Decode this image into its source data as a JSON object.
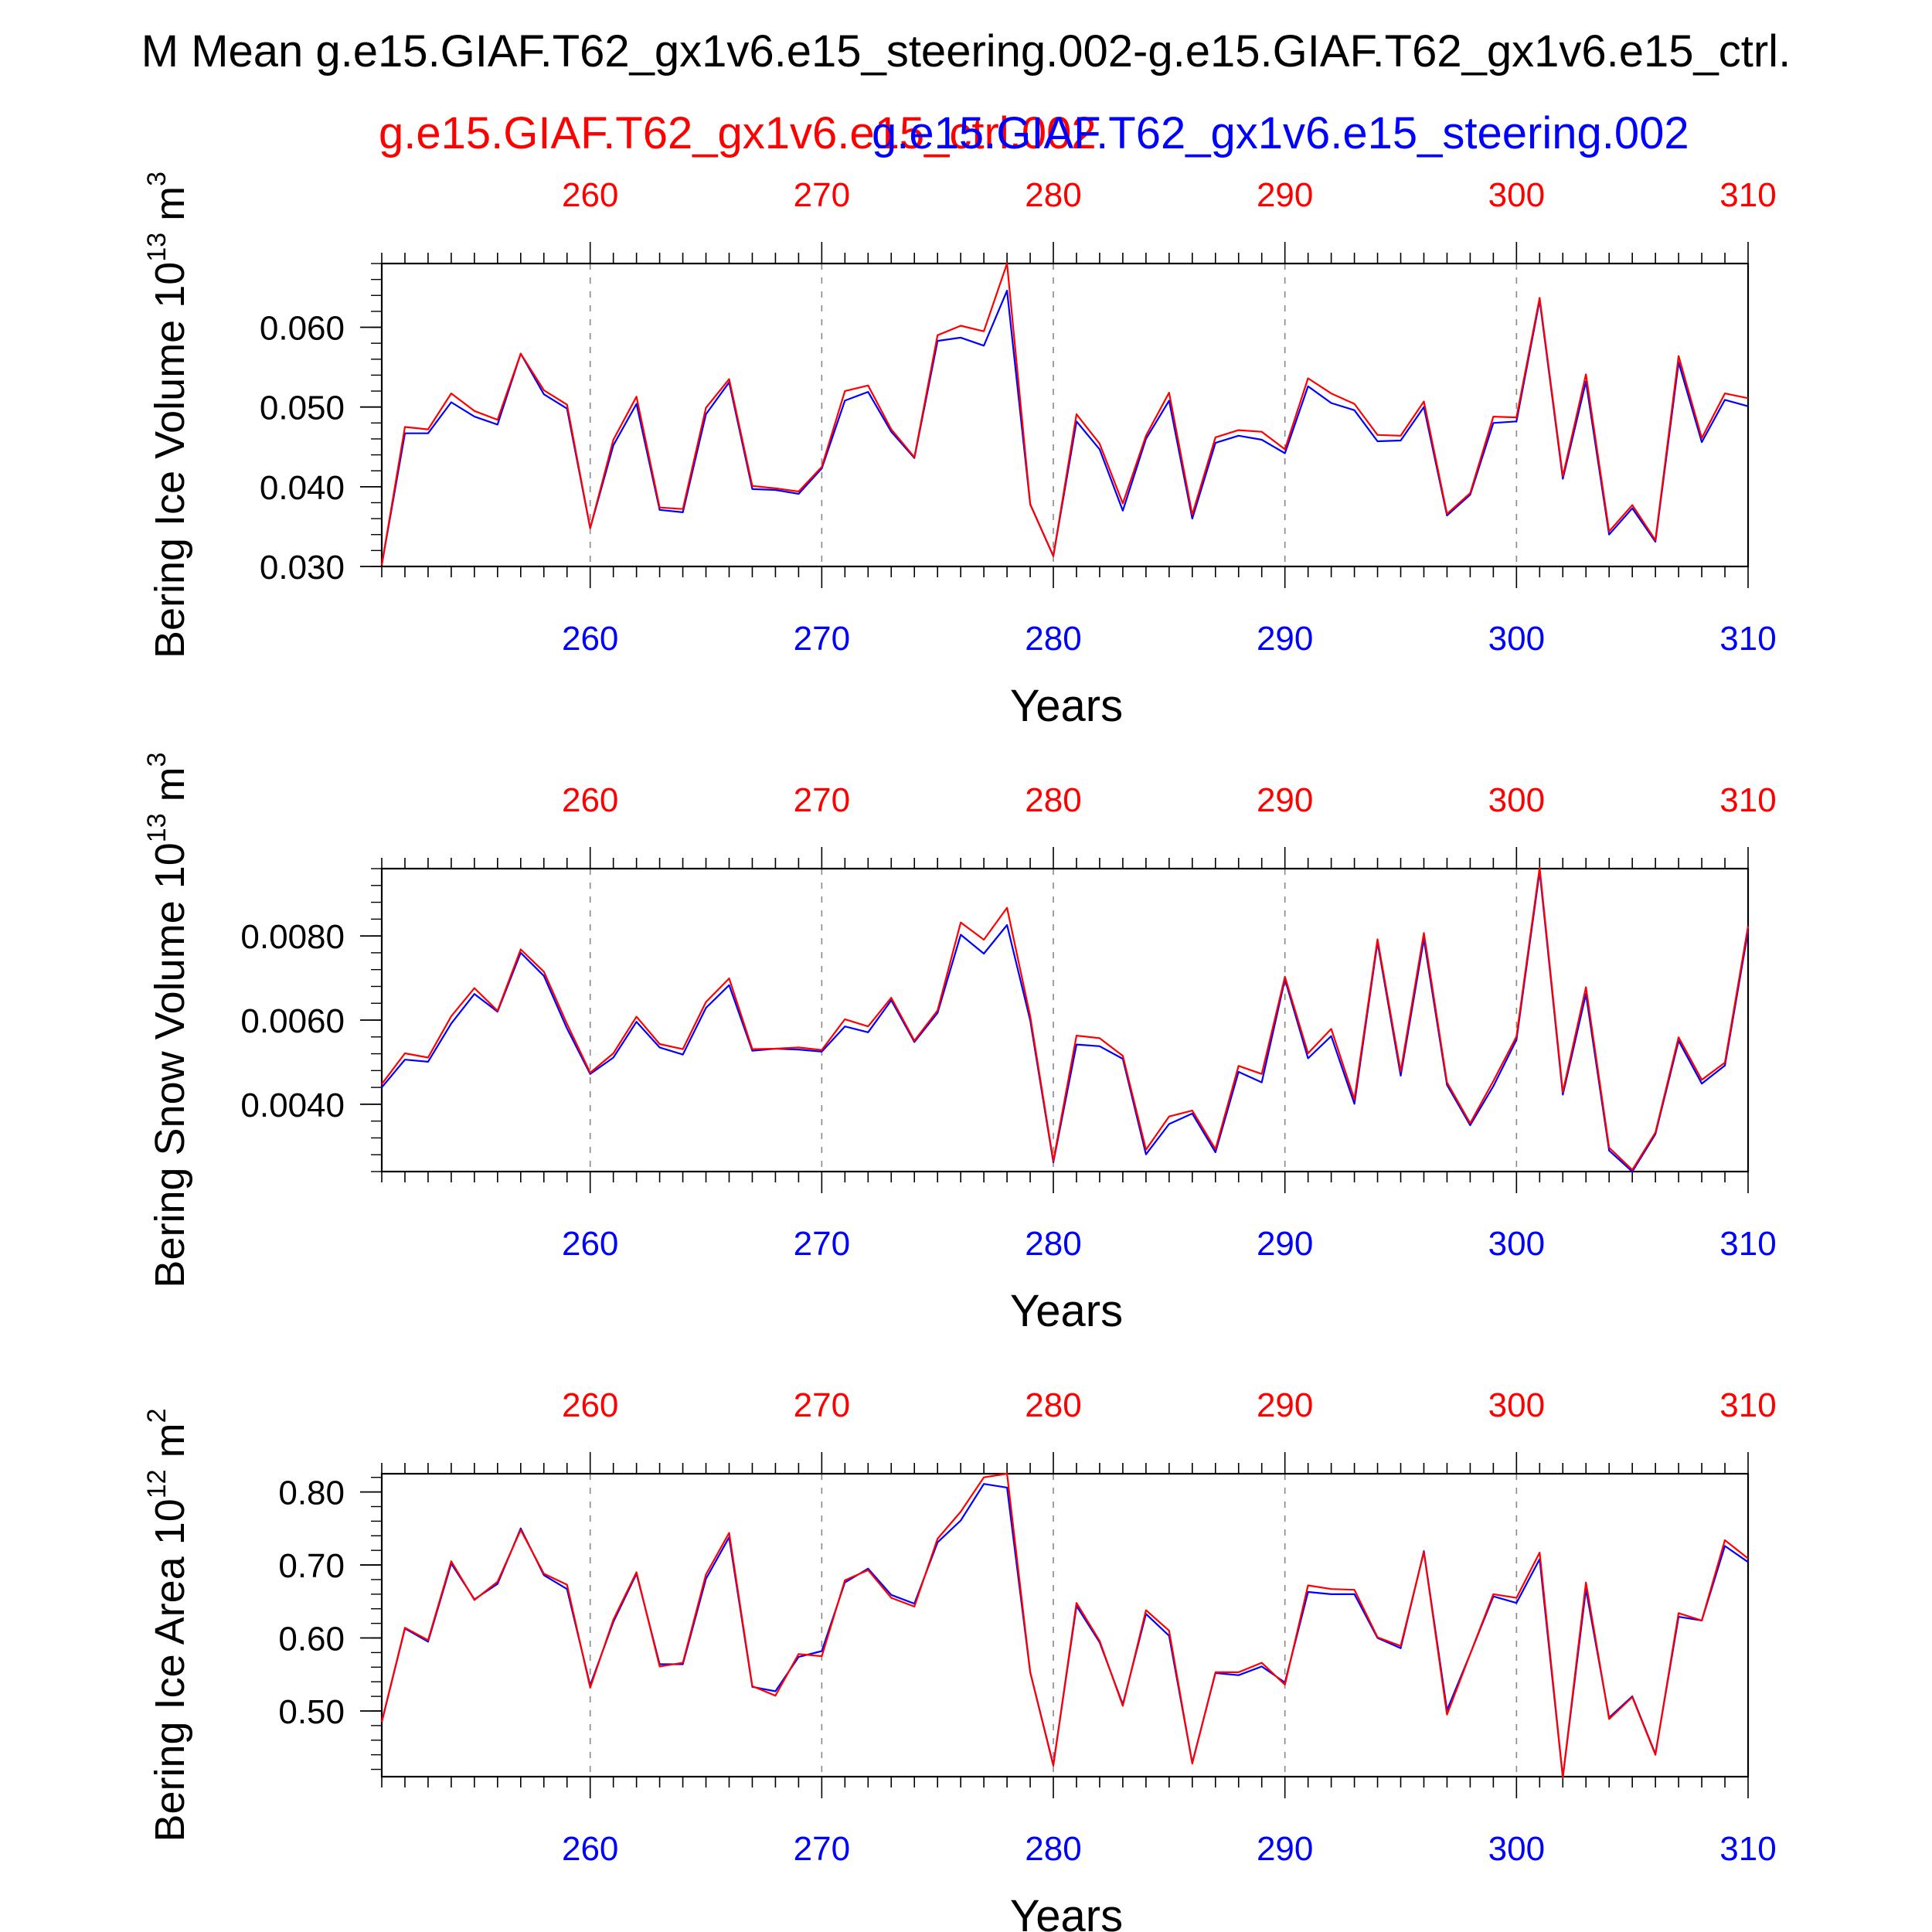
{
  "figure": {
    "title": "M Mean g.e15.GIAF.T62_gx1v6.e15_steering.002-g.e15.GIAF.T62_gx1v6.e15_ctrl.",
    "legend": {
      "ctrl_label": "g.e15.GIAF.T62_gx1v6.e15_ctrl.002",
      "steering_label": "g.e15.GIAF.T62_gx1v6.e15_steering.002"
    },
    "colors": {
      "ctrl": "#ff0000",
      "steering": "#0000ff",
      "axis": "#000000",
      "grid": "#888888"
    }
  },
  "chart_data": [
    {
      "type": "line",
      "ylabel": "Bering Ice Volume 10",
      "yunit_sup": "13",
      "yunit": "m",
      "yunit_pow": "3",
      "xlabel": "Years",
      "xlim": [
        251,
        310
      ],
      "ylim": [
        0.03,
        0.068
      ],
      "yticks": [
        0.03,
        0.04,
        0.05,
        0.06
      ],
      "ytick_labels": [
        "0.030",
        "0.040",
        "0.050",
        "0.060"
      ],
      "ytick_minor": 0.002,
      "xticks": [
        260,
        270,
        280,
        290,
        300,
        310
      ],
      "xtick_labels": [
        "260",
        "270",
        "280",
        "290",
        "300",
        "310"
      ],
      "x": [
        251,
        252,
        253,
        254,
        255,
        256,
        257,
        258,
        259,
        260,
        261,
        262,
        263,
        264,
        265,
        266,
        267,
        268,
        269,
        270,
        271,
        272,
        273,
        274,
        275,
        276,
        277,
        278,
        279,
        280,
        281,
        282,
        283,
        284,
        285,
        286,
        287,
        288,
        289,
        290,
        291,
        292,
        293,
        294,
        295,
        296,
        297,
        298,
        299,
        300,
        301,
        302,
        303,
        304,
        305,
        306,
        307,
        308,
        309,
        310
      ],
      "series": [
        {
          "name": "g.e15.GIAF.T62_gx1v6.e15_ctrl.002",
          "color": "#ff0000",
          "values": [
            0.0302,
            0.0475,
            0.0472,
            0.0517,
            0.0495,
            0.0484,
            0.0567,
            0.0521,
            0.0503,
            0.0348,
            0.0459,
            0.0513,
            0.0374,
            0.0372,
            0.0499,
            0.0535,
            0.0401,
            0.0398,
            0.0394,
            0.0425,
            0.052,
            0.0527,
            0.0472,
            0.0437,
            0.059,
            0.0602,
            0.0595,
            0.068,
            0.0378,
            0.0313,
            0.0491,
            0.0454,
            0.0379,
            0.0464,
            0.0518,
            0.0365,
            0.0462,
            0.0471,
            0.0469,
            0.0447,
            0.0536,
            0.0517,
            0.0504,
            0.0465,
            0.0464,
            0.0507,
            0.0366,
            0.0392,
            0.0488,
            0.0487,
            0.0637,
            0.0413,
            0.0541,
            0.0344,
            0.0377,
            0.0333,
            0.0564,
            0.0461,
            0.0517,
            0.0511
          ]
        },
        {
          "name": "g.e15.GIAF.T62_gx1v6.e15_steering.002",
          "color": "#0000ff",
          "values": [
            0.0302,
            0.0467,
            0.0467,
            0.0506,
            0.0488,
            0.0478,
            0.0567,
            0.0516,
            0.0498,
            0.0348,
            0.0452,
            0.0504,
            0.0371,
            0.0368,
            0.0491,
            0.0531,
            0.0397,
            0.0396,
            0.0391,
            0.0423,
            0.0508,
            0.0519,
            0.0469,
            0.0436,
            0.0583,
            0.0587,
            0.0577,
            0.0646,
            0.0378,
            0.0313,
            0.0482,
            0.0447,
            0.037,
            0.046,
            0.0508,
            0.036,
            0.0455,
            0.0464,
            0.0459,
            0.0442,
            0.0526,
            0.0505,
            0.0496,
            0.0457,
            0.0458,
            0.05,
            0.0364,
            0.039,
            0.048,
            0.0482,
            0.0634,
            0.041,
            0.0532,
            0.034,
            0.0373,
            0.0331,
            0.0556,
            0.0456,
            0.0509,
            0.0501
          ]
        }
      ]
    },
    {
      "type": "line",
      "ylabel": "Bering Snow Volume 10",
      "yunit_sup": "13",
      "yunit": "m",
      "yunit_pow": "3",
      "xlabel": "Years",
      "xlim": [
        251,
        310
      ],
      "ylim": [
        0.0024,
        0.0096
      ],
      "yticks": [
        0.004,
        0.006,
        0.008
      ],
      "ytick_labels": [
        "0.0040",
        "0.0060",
        "0.0080"
      ],
      "ytick_minor": 0.0004,
      "xticks": [
        260,
        270,
        280,
        290,
        300,
        310
      ],
      "xtick_labels": [
        "260",
        "270",
        "280",
        "290",
        "300",
        "310"
      ],
      "x": [
        251,
        252,
        253,
        254,
        255,
        256,
        257,
        258,
        259,
        260,
        261,
        262,
        263,
        264,
        265,
        266,
        267,
        268,
        269,
        270,
        271,
        272,
        273,
        274,
        275,
        276,
        277,
        278,
        279,
        280,
        281,
        282,
        283,
        284,
        285,
        286,
        287,
        288,
        289,
        290,
        291,
        292,
        293,
        294,
        295,
        296,
        297,
        298,
        299,
        300,
        301,
        302,
        303,
        304,
        305,
        306,
        307,
        308,
        309,
        310
      ],
      "series": [
        {
          "name": "g.e15.GIAF.T62_gx1v6.e15_ctrl.002",
          "color": "#ff0000",
          "values": [
            0.00448,
            0.00521,
            0.00511,
            0.00609,
            0.00676,
            0.00622,
            0.00768,
            0.00715,
            0.00591,
            0.00475,
            0.00521,
            0.00608,
            0.00543,
            0.00531,
            0.00643,
            0.00699,
            0.00531,
            0.00532,
            0.00535,
            0.00529,
            0.00602,
            0.00585,
            0.00653,
            0.00551,
            0.00623,
            0.00832,
            0.00791,
            0.00867,
            0.00609,
            0.00265,
            0.00563,
            0.00557,
            0.00515,
            0.00292,
            0.00371,
            0.00385,
            0.00293,
            0.00491,
            0.00472,
            0.00703,
            0.00521,
            0.00579,
            0.00412,
            0.00792,
            0.00478,
            0.00807,
            0.00452,
            0.00355,
            0.00455,
            0.00561,
            0.00962,
            0.00429,
            0.00678,
            0.00297,
            0.00244,
            0.00333,
            0.00559,
            0.00458,
            0.00499,
            0.00823
          ]
        },
        {
          "name": "g.e15.GIAF.T62_gx1v6.e15_steering.002",
          "color": "#0000ff",
          "values": [
            0.0044,
            0.00506,
            0.00501,
            0.00592,
            0.00662,
            0.0062,
            0.0076,
            0.00705,
            0.0058,
            0.00472,
            0.00511,
            0.00596,
            0.00535,
            0.00518,
            0.00629,
            0.00683,
            0.00527,
            0.00532,
            0.0053,
            0.00525,
            0.00585,
            0.00571,
            0.00647,
            0.00548,
            0.00617,
            0.00803,
            0.00758,
            0.00826,
            0.00599,
            0.00262,
            0.00542,
            0.00538,
            0.00508,
            0.00281,
            0.00353,
            0.00378,
            0.00286,
            0.00477,
            0.00452,
            0.00697,
            0.00509,
            0.00562,
            0.00401,
            0.00785,
            0.00468,
            0.00793,
            0.00446,
            0.0035,
            0.00443,
            0.00553,
            0.00954,
            0.00423,
            0.00662,
            0.0029,
            0.0024,
            0.00329,
            0.00551,
            0.00449,
            0.00492,
            0.00812
          ]
        }
      ]
    },
    {
      "type": "line",
      "ylabel": "Bering Ice Area 10",
      "yunit_sup": "12",
      "yunit": "m",
      "yunit_pow": "2",
      "xlabel": "Years",
      "xlim": [
        251,
        310
      ],
      "ylim": [
        0.41,
        0.825
      ],
      "yticks": [
        0.5,
        0.6,
        0.7,
        0.8
      ],
      "ytick_labels": [
        "0.50",
        "0.60",
        "0.70",
        "0.80"
      ],
      "ytick_minor": 0.02,
      "xticks": [
        260,
        270,
        280,
        290,
        300,
        310
      ],
      "xtick_labels": [
        "260",
        "270",
        "280",
        "290",
        "300",
        "310"
      ],
      "x": [
        251,
        252,
        253,
        254,
        255,
        256,
        257,
        258,
        259,
        260,
        261,
        262,
        263,
        264,
        265,
        266,
        267,
        268,
        269,
        270,
        271,
        272,
        273,
        274,
        275,
        276,
        277,
        278,
        279,
        280,
        281,
        282,
        283,
        284,
        285,
        286,
        287,
        288,
        289,
        290,
        291,
        292,
        293,
        294,
        295,
        296,
        297,
        298,
        299,
        300,
        301,
        302,
        303,
        304,
        305,
        306,
        307,
        308,
        309,
        310
      ],
      "series": [
        {
          "name": "g.e15.GIAF.T62_gx1v6.e15_ctrl.002",
          "color": "#ff0000",
          "values": [
            0.485,
            0.614,
            0.597,
            0.705,
            0.652,
            0.677,
            0.748,
            0.688,
            0.673,
            0.532,
            0.625,
            0.69,
            0.561,
            0.566,
            0.687,
            0.744,
            0.534,
            0.521,
            0.578,
            0.575,
            0.679,
            0.693,
            0.655,
            0.643,
            0.736,
            0.773,
            0.82,
            0.825,
            0.553,
            0.425,
            0.648,
            0.596,
            0.507,
            0.638,
            0.61,
            0.428,
            0.553,
            0.553,
            0.566,
            0.536,
            0.672,
            0.667,
            0.666,
            0.601,
            0.589,
            0.718,
            0.495,
            0.578,
            0.66,
            0.655,
            0.717,
            0.409,
            0.676,
            0.489,
            0.519,
            0.44,
            0.634,
            0.624,
            0.734,
            0.709
          ]
        },
        {
          "name": "g.e15.GIAF.T62_gx1v6.e15_steering.002",
          "color": "#0000ff",
          "values": [
            0.485,
            0.613,
            0.595,
            0.702,
            0.653,
            0.674,
            0.75,
            0.686,
            0.667,
            0.535,
            0.622,
            0.688,
            0.564,
            0.564,
            0.681,
            0.738,
            0.533,
            0.527,
            0.574,
            0.582,
            0.676,
            0.695,
            0.659,
            0.647,
            0.731,
            0.761,
            0.811,
            0.806,
            0.553,
            0.426,
            0.644,
            0.594,
            0.509,
            0.633,
            0.603,
            0.429,
            0.552,
            0.549,
            0.561,
            0.539,
            0.663,
            0.66,
            0.66,
            0.6,
            0.586,
            0.719,
            0.501,
            0.578,
            0.657,
            0.648,
            0.708,
            0.409,
            0.667,
            0.491,
            0.52,
            0.441,
            0.629,
            0.624,
            0.726,
            0.704
          ]
        }
      ]
    }
  ]
}
